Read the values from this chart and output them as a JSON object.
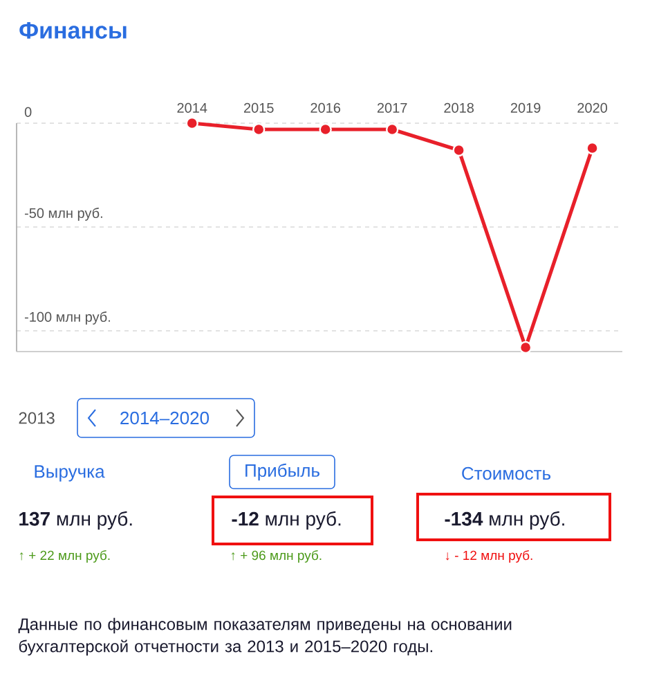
{
  "chart_data": {
    "type": "line",
    "title": "Финансы",
    "categories": [
      "2014",
      "2015",
      "2016",
      "2017",
      "2018",
      "2019",
      "2020"
    ],
    "series": [
      {
        "color": "#e8202a",
        "values": [
          0,
          -3,
          -3,
          -3,
          -13,
          -108,
          -12
        ]
      }
    ],
    "yticks": [
      0,
      {
        "value": -50,
        "label": "-50 млн руб."
      },
      {
        "value": -100,
        "label": "-100 млн руб."
      }
    ],
    "ylim": [
      -110,
      0
    ],
    "grid": "y",
    "marker": "circle",
    "annotations": [
      "2013",
      "2014–2020",
      "Выручка",
      "Прибыль",
      "Стоимость",
      "**137** млн руб.",
      "↑ + 22 млн руб.",
      "**-12** млн руб.",
      "↑ + 96 млн руб.",
      "**-134** млн руб.",
      "↓ - 12 млн руб.",
      "Данные по финансовым показателям приведены на основании бухгалтерской отчетности за 2013 и 2015–2020 годы."
    ]
  }
}
